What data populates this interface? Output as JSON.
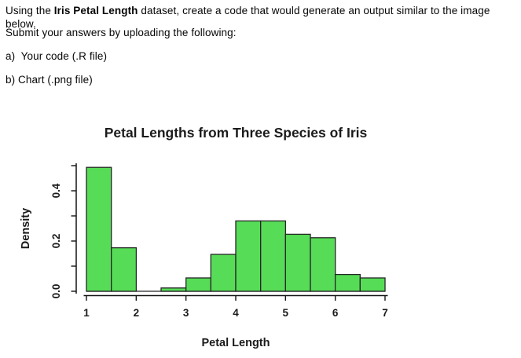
{
  "document": {
    "instruction": {
      "prefix": "Using the ",
      "bold": "Iris Petal Length",
      "suffix": " dataset, create a code that would generate an output similar to the image below."
    },
    "submit_line": "Submit your answers by uploading the following:",
    "item_a": "a)  Your code (.R file)",
    "item_b": "b) Chart (.png file)"
  },
  "chart_data": {
    "type": "bar",
    "subtype": "histogram",
    "title": "Petal Lengths from Three Species of Iris",
    "xlabel": "Petal Length",
    "ylabel": "Density",
    "xlim": [
      1,
      7
    ],
    "ylim": [
      0,
      0.5
    ],
    "grid": false,
    "legend_position": "none",
    "bin_width": 0.5,
    "bin_edges": [
      1,
      1.5,
      2,
      2.5,
      3,
      3.5,
      4,
      4.5,
      5,
      5.5,
      6,
      6.5,
      7
    ],
    "densities": [
      0.493,
      0.173,
      0,
      0.013,
      0.053,
      0.147,
      0.28,
      0.28,
      0.227,
      0.213,
      0.067,
      0.053
    ],
    "xticks": [
      1,
      2,
      3,
      4,
      5,
      6,
      7
    ],
    "ytick_values": [
      0,
      0.1,
      0.2,
      0.3,
      0.4,
      0.5
    ],
    "ytick_labeled": [
      {
        "value": 0,
        "label": "0.0"
      },
      {
        "value": 0.2,
        "label": "0.2"
      },
      {
        "value": 0.4,
        "label": "0.4"
      }
    ],
    "colors": {
      "bar_fill": "#57DC57",
      "bar_stroke": "#262626",
      "axis": "#141414",
      "text": "#1b1b1b"
    }
  }
}
